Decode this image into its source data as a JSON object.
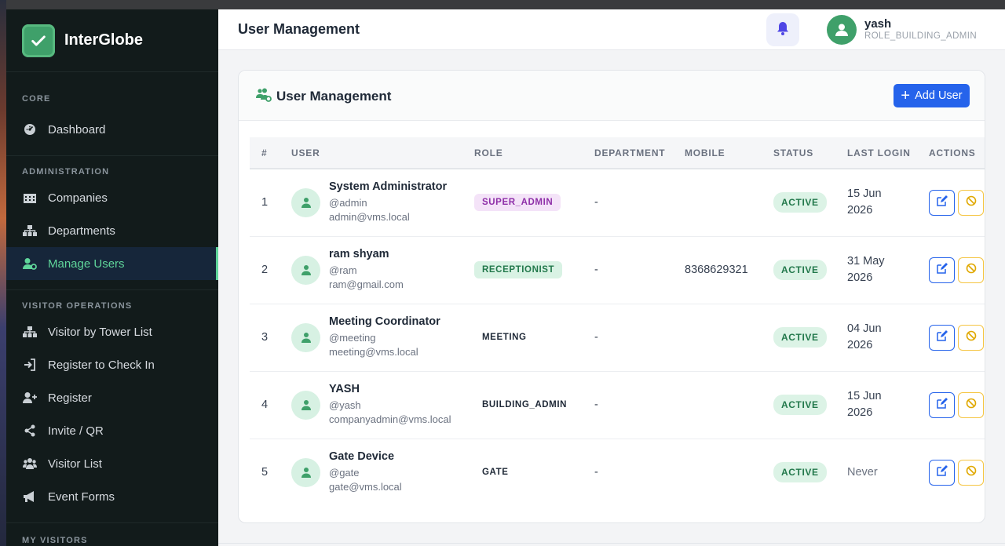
{
  "brand": {
    "name": "InterGlobe"
  },
  "sidebar": {
    "sections": [
      {
        "title": "CORE",
        "items": [
          {
            "label": "Dashboard",
            "icon": "dashboard-icon"
          }
        ]
      },
      {
        "title": "ADMINISTRATION",
        "items": [
          {
            "label": "Companies",
            "icon": "building-icon"
          },
          {
            "label": "Departments",
            "icon": "org-chart-icon"
          },
          {
            "label": "Manage Users",
            "icon": "user-gear-icon",
            "active": true
          }
        ]
      },
      {
        "title": "VISITOR OPERATIONS",
        "items": [
          {
            "label": "Visitor by Tower List",
            "icon": "org-chart-icon"
          },
          {
            "label": "Register to Check In",
            "icon": "sign-in-icon"
          },
          {
            "label": "Register",
            "icon": "user-plus-icon"
          },
          {
            "label": "Invite / QR",
            "icon": "share-icon"
          },
          {
            "label": "Visitor List",
            "icon": "users-icon"
          },
          {
            "label": "Event Forms",
            "icon": "megaphone-icon"
          }
        ]
      },
      {
        "title": "MY VISITORS",
        "items": []
      }
    ]
  },
  "header": {
    "title": "User Management",
    "user": {
      "name": "yash",
      "role": "ROLE_BUILDING_ADMIN"
    }
  },
  "card": {
    "title": "User Management",
    "add_label": "Add User"
  },
  "table": {
    "columns": [
      "#",
      "USER",
      "ROLE",
      "DEPARTMENT",
      "MOBILE",
      "STATUS",
      "LAST LOGIN",
      "ACTIONS"
    ],
    "rows": [
      {
        "num": "1",
        "name": "System Administrator",
        "username": "@admin",
        "email": "admin@vms.local",
        "role": "SUPER_ADMIN",
        "department": "-",
        "mobile": "",
        "status": "ACTIVE",
        "login1": "15 Jun",
        "login2": "2026"
      },
      {
        "num": "2",
        "name": "ram shyam",
        "username": "@ram",
        "email": "ram@gmail.com",
        "role": "RECEPTIONIST",
        "department": "-",
        "mobile": "8368629321",
        "status": "ACTIVE",
        "login1": "31 May",
        "login2": "2026"
      },
      {
        "num": "3",
        "name": "Meeting Coordinator",
        "username": "@meeting",
        "email": "meeting@vms.local",
        "role": "MEETING",
        "department": "-",
        "mobile": "",
        "status": "ACTIVE",
        "login1": "04 Jun",
        "login2": "2026"
      },
      {
        "num": "4",
        "name": "YASH",
        "username": "@yash",
        "email": "companyadmin@vms.local",
        "role": "BUILDING_ADMIN",
        "department": "-",
        "mobile": "",
        "status": "ACTIVE",
        "login1": "15 Jun",
        "login2": "2026"
      },
      {
        "num": "5",
        "name": "Gate Device",
        "username": "@gate",
        "email": "gate@vms.local",
        "role": "GATE",
        "department": "-",
        "mobile": "",
        "status": "ACTIVE",
        "login1": "Never",
        "login2": ""
      }
    ]
  },
  "colors": {
    "accent": "#2563eb",
    "brand_green": "#3fa06a",
    "active_nav": "#5fd59a",
    "sidebar_bg": "#121b1b"
  }
}
